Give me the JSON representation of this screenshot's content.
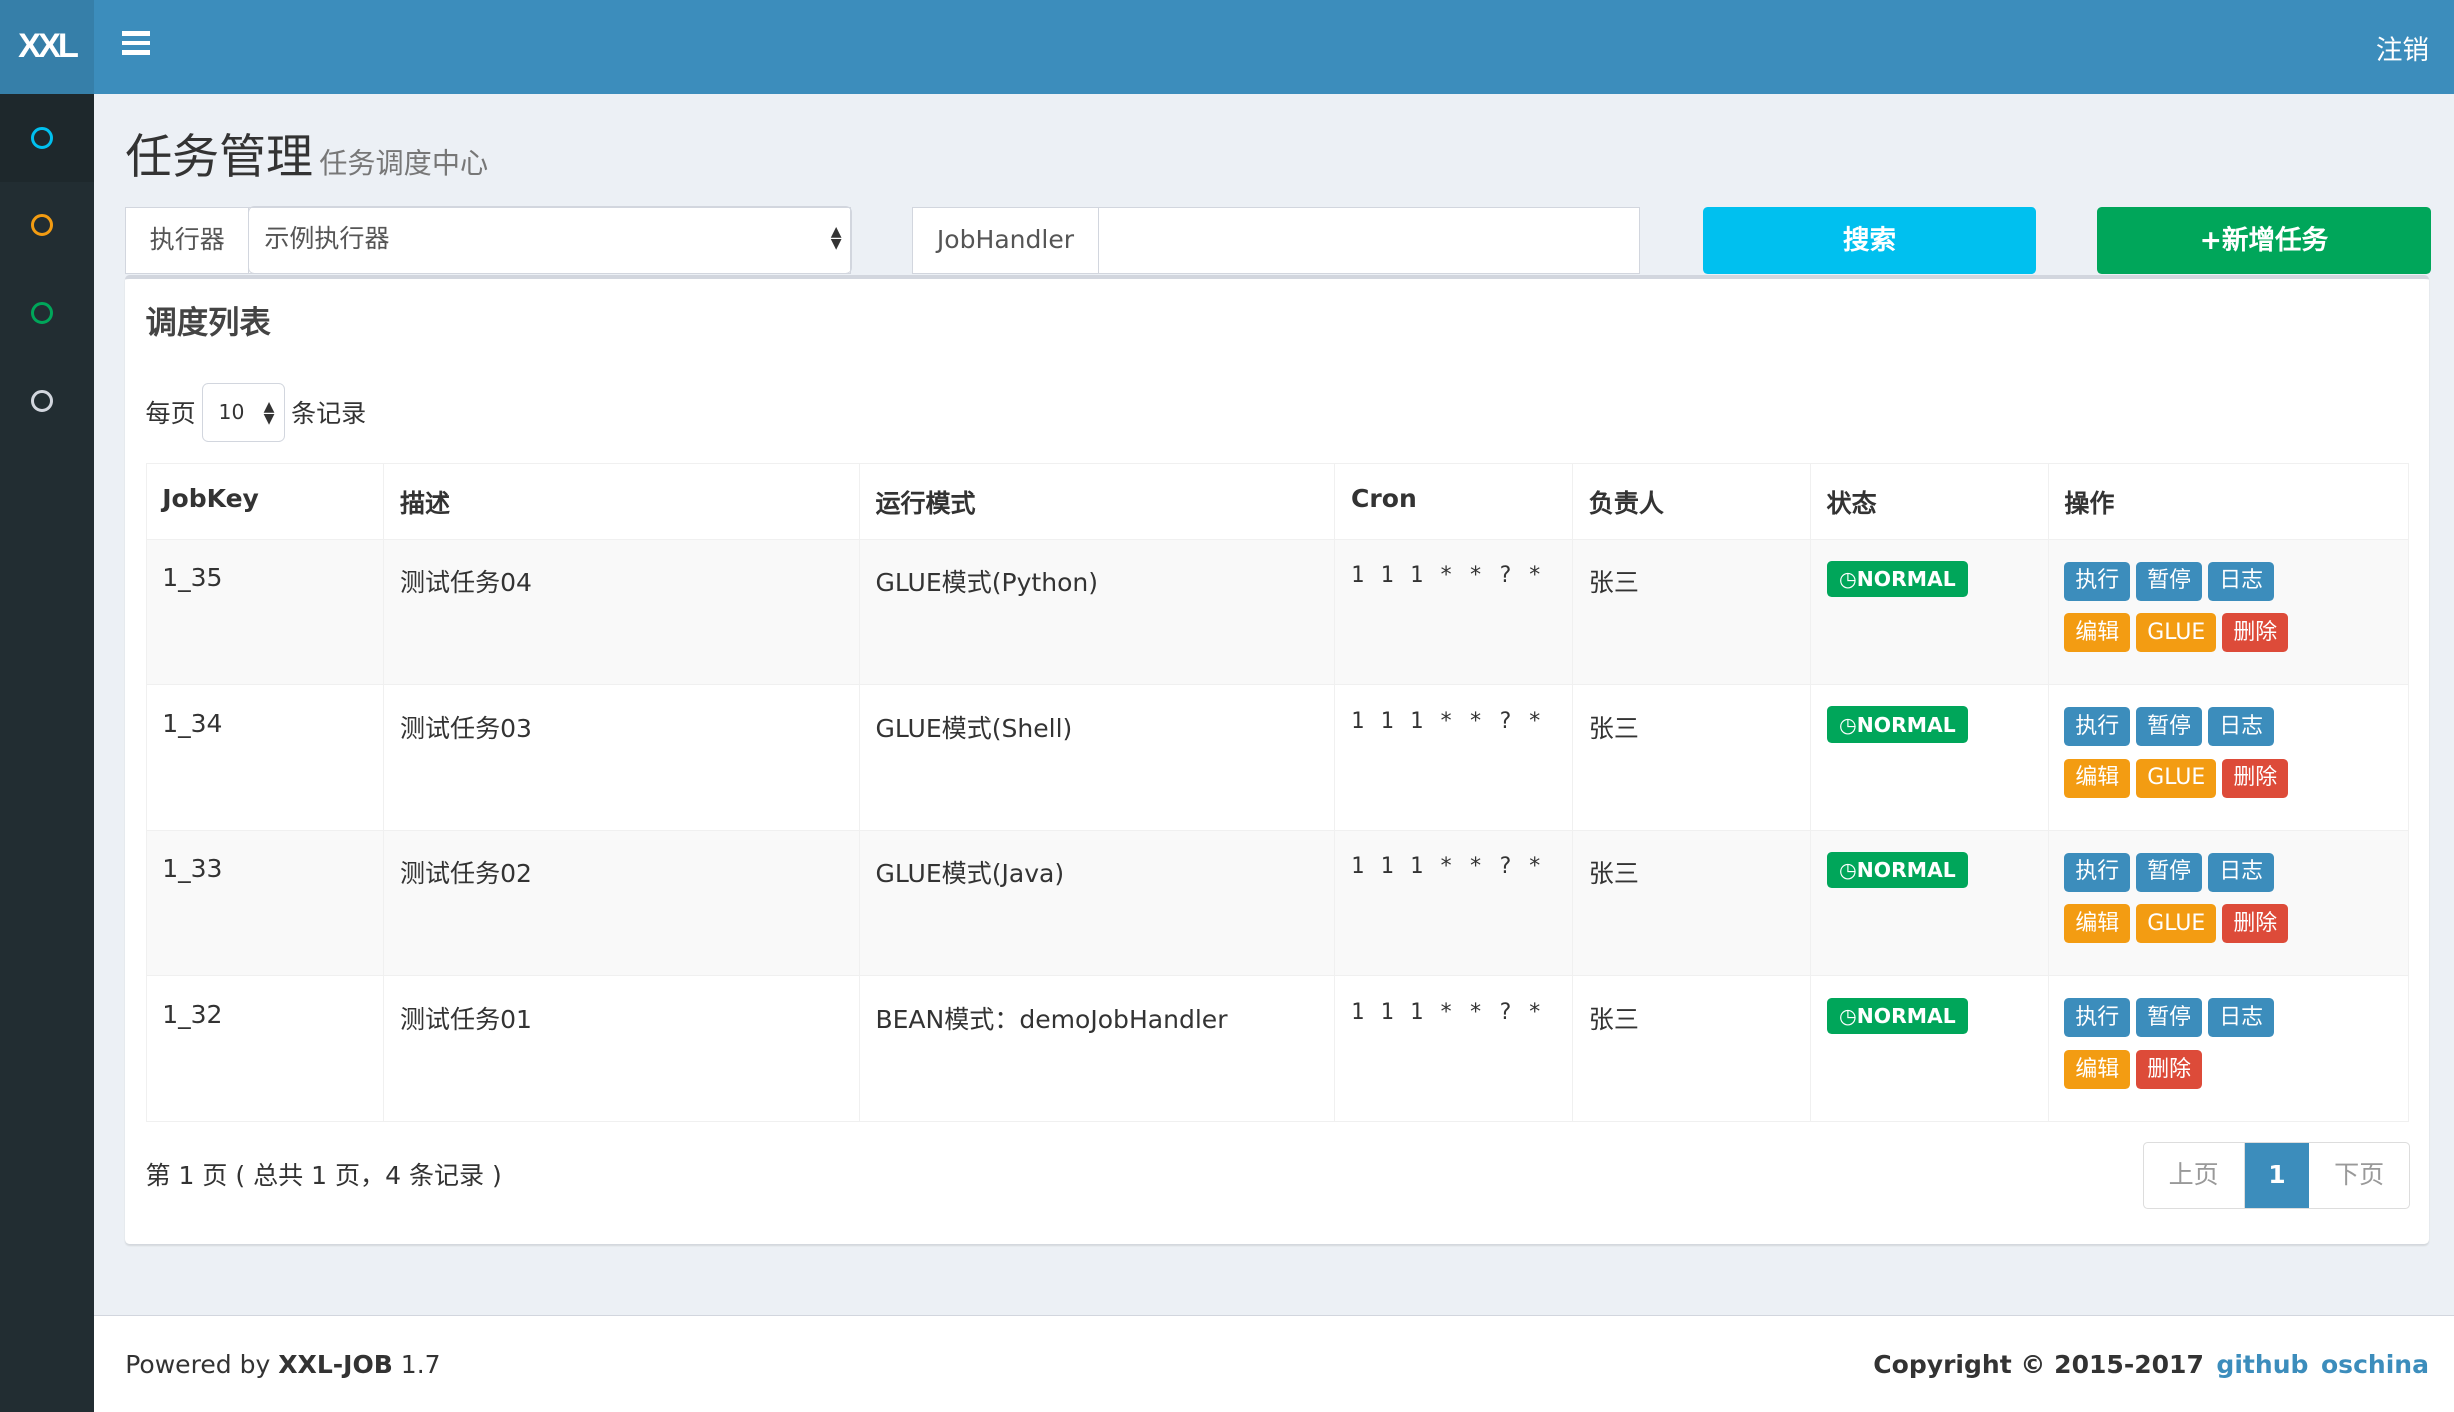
{
  "header": {
    "logo": "XXL",
    "logout": "注销"
  },
  "sidebar": {
    "items": [
      {
        "icon": "circle-icon",
        "color": "#00c0ef"
      },
      {
        "icon": "circle-icon",
        "color": "#f39c12"
      },
      {
        "icon": "circle-icon",
        "color": "#00a65a"
      },
      {
        "icon": "circle-icon",
        "color": "#d2d6de"
      }
    ]
  },
  "page": {
    "title": "任务管理",
    "subtitle": "任务调度中心"
  },
  "filters": {
    "executor_label": "执行器",
    "executor_value": "示例执行器",
    "jobhandler_label": "JobHandler",
    "jobhandler_value": "",
    "search": "搜索",
    "add": "+新增任务"
  },
  "box": {
    "title": "调度列表",
    "per_page_prefix": "每页",
    "per_page": "10",
    "per_page_suffix": "条记录"
  },
  "table": {
    "headers": [
      "JobKey",
      "描述",
      "运行模式",
      "Cron",
      "负责人",
      "状态",
      "操作"
    ],
    "rows": [
      {
        "key": "1_35",
        "desc": "测试任务04",
        "mode": "GLUE模式(Python)",
        "cron": "1 1 1 * * ? *",
        "owner": "张三",
        "status": "NORMAL",
        "ops": [
          "执行",
          "暂停",
          "日志",
          "编辑",
          "GLUE",
          "删除"
        ]
      },
      {
        "key": "1_34",
        "desc": "测试任务03",
        "mode": "GLUE模式(Shell)",
        "cron": "1 1 1 * * ? *",
        "owner": "张三",
        "status": "NORMAL",
        "ops": [
          "执行",
          "暂停",
          "日志",
          "编辑",
          "GLUE",
          "删除"
        ]
      },
      {
        "key": "1_33",
        "desc": "测试任务02",
        "mode": "GLUE模式(Java)",
        "cron": "1 1 1 * * ? *",
        "owner": "张三",
        "status": "NORMAL",
        "ops": [
          "执行",
          "暂停",
          "日志",
          "编辑",
          "GLUE",
          "删除"
        ]
      },
      {
        "key": "1_32",
        "desc": "测试任务01",
        "mode": "BEAN模式：demoJobHandler",
        "cron": "1 1 1 * * ? *",
        "owner": "张三",
        "status": "NORMAL",
        "ops": [
          "执行",
          "暂停",
          "日志",
          "编辑",
          "删除"
        ]
      }
    ]
  },
  "pagination": {
    "info": "第 1 页 ( 总共 1 页，4 条记录 )",
    "prev": "上页",
    "current": "1",
    "next": "下页"
  },
  "footer": {
    "powered_prefix": "Powered by ",
    "product": "XXL-JOB",
    "version": " 1.7",
    "copyright": "Copyright © 2015-2017",
    "links": [
      "github",
      "oschina"
    ]
  },
  "colors": {
    "primary": "#3c8dbc",
    "info": "#00c0ef",
    "success": "#00a65a",
    "warning": "#f39c12",
    "danger": "#dd4b39"
  }
}
